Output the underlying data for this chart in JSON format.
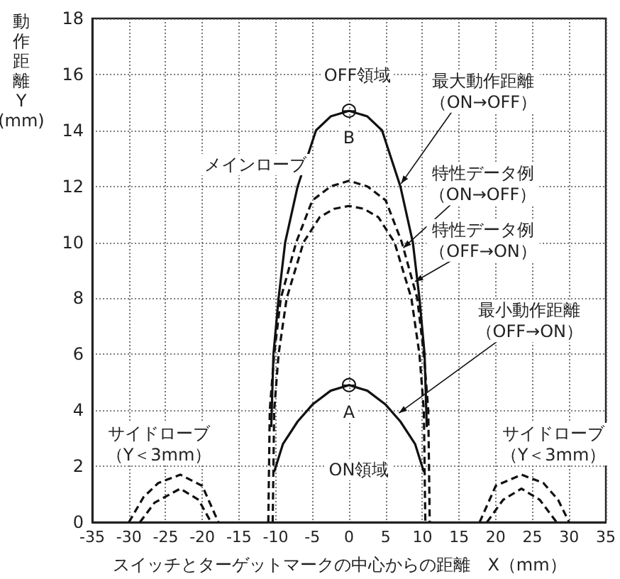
{
  "chart_data": {
    "type": "line",
    "xlabel": "スイッチとターゲットマークの中心からの距離　X（mm）",
    "ylabel": "動作距離Y(mm)",
    "xlim": [
      -35,
      35
    ],
    "xticks": [
      -35,
      -30,
      -25,
      -20,
      -15,
      -10,
      -5,
      0,
      5,
      10,
      15,
      20,
      25,
      30,
      35
    ],
    "ylim": [
      0,
      18
    ],
    "yticks": [
      0,
      2,
      4,
      6,
      8,
      10,
      12,
      14,
      16,
      18
    ],
    "grid": true,
    "marker": "none",
    "series": [
      {
        "color": "#111111",
        "line_style": "solid",
        "x": [
          -10.6,
          -10.3,
          -9.6,
          -8.7,
          -7,
          -4.5,
          -2.5,
          0,
          2.5,
          4.5,
          7,
          8.7,
          9.6,
          10.3,
          10.6
        ],
        "values": [
          3.4,
          6,
          8,
          10,
          12,
          14,
          14.5,
          14.7,
          14.5,
          14,
          12,
          10,
          8,
          6,
          3.4
        ]
      },
      {
        "color": "#111111",
        "line_style": "dashed",
        "x": [
          -11,
          -10.8,
          -10.2,
          -9.3,
          -7.2,
          -5,
          -2.5,
          0,
          2.5,
          5,
          7.2,
          9.3,
          10.2,
          10.8,
          11
        ],
        "values": [
          0,
          4,
          6,
          8,
          10,
          11.5,
          12,
          12.2,
          12,
          11.5,
          10,
          8,
          6,
          4,
          0
        ]
      },
      {
        "color": "#111111",
        "line_style": "dashed",
        "x": [
          -10.4,
          -10.2,
          -9.6,
          -8.5,
          -6.2,
          -4,
          -2,
          0,
          2,
          4,
          6.2,
          8.5,
          9.6,
          10.2,
          10.4
        ],
        "values": [
          0,
          4,
          6,
          8,
          10,
          10.9,
          11.2,
          11.3,
          11.2,
          10.9,
          10,
          8,
          6,
          4,
          0
        ]
      },
      {
        "color": "#111111",
        "line_style": "solid",
        "x": [
          -10.2,
          -9,
          -7,
          -5,
          -2.5,
          0,
          2.5,
          5,
          7,
          9,
          10.2
        ],
        "values": [
          1.8,
          2.8,
          3.6,
          4.2,
          4.7,
          4.9,
          4.7,
          4.2,
          3.6,
          2.8,
          1.8
        ]
      },
      {
        "color": "#111111",
        "line_style": "dashed",
        "x": [
          -30,
          -28,
          -26,
          -23,
          -20,
          -17.8
        ],
        "values": [
          0,
          0.9,
          1.4,
          1.7,
          1.3,
          0
        ]
      },
      {
        "color": "#111111",
        "line_style": "dashed",
        "x": [
          -28.5,
          -26.5,
          -23,
          -20.5,
          -18.8
        ],
        "values": [
          0,
          0.7,
          1.2,
          0.8,
          0
        ]
      },
      {
        "color": "#111111",
        "line_style": "dashed",
        "x": [
          17.8,
          20,
          23.5,
          26.5,
          28.5,
          30
        ],
        "values": [
          0,
          1.3,
          1.7,
          1.4,
          0.8,
          0
        ]
      },
      {
        "color": "#111111",
        "line_style": "dashed",
        "x": [
          18.8,
          21,
          23.5,
          26,
          28.3
        ],
        "values": [
          0,
          0.8,
          1.2,
          0.8,
          0
        ]
      }
    ],
    "annotations": [
      "OFF領域",
      {
        "text": "最大動作距離（ON→OFF）",
        "x": 7.1,
        "y": 12.1
      },
      {
        "text": "特性データ例（ON→OFF）",
        "x": 7.4,
        "y": 9.8
      },
      {
        "text": "特性データ例（OFF→ON）",
        "x": 9,
        "y": 8.6
      },
      {
        "text": "最小動作距離（OFF→ON）",
        "x": 6.8,
        "y": 3.9
      },
      "メインローブ",
      {
        "text": "B",
        "x": 0,
        "y": 14.7
      },
      {
        "text": "A",
        "x": 0,
        "y": 4.9
      },
      "ON領域",
      "サイドローブ（Y＜3mm）",
      "サイドローブ（Y＜3mm）"
    ]
  }
}
